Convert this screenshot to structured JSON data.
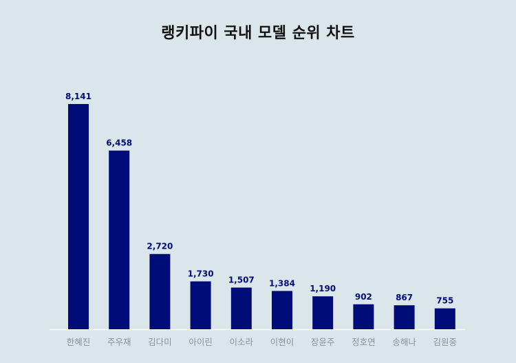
{
  "chart_data": {
    "type": "bar",
    "title": "랭키파이 국내 모델 순위 차트",
    "categories": [
      "한혜진",
      "주우재",
      "김다미",
      "아이린",
      "이소라",
      "이현이",
      "장윤주",
      "정호연",
      "송해나",
      "김원중"
    ],
    "values": [
      8141,
      6458,
      2720,
      1730,
      1507,
      1384,
      1190,
      902,
      867,
      755
    ],
    "value_labels": [
      "8,141",
      "6,458",
      "2,720",
      "1,730",
      "1,507",
      "1,384",
      "1,190",
      "902",
      "867",
      "755"
    ],
    "xlabel": "",
    "ylabel": "",
    "ylim": [
      0,
      8141
    ],
    "grid": false,
    "legend": "none",
    "colors": {
      "bar": "#000c78",
      "value_label": "#000c78",
      "category_label": "#8a8f96",
      "baseline": "#ffffff",
      "background": "#dbe6ea"
    }
  }
}
